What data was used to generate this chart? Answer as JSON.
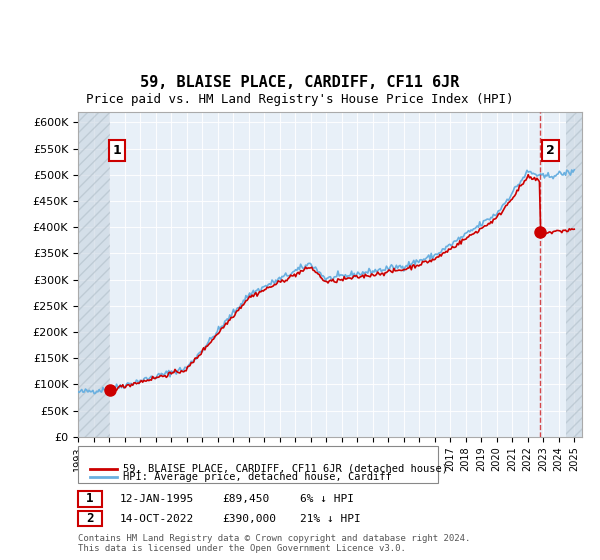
{
  "title": "59, BLAISE PLACE, CARDIFF, CF11 6JR",
  "subtitle": "Price paid vs. HM Land Registry's House Price Index (HPI)",
  "legend_line1": "59, BLAISE PLACE, CARDIFF, CF11 6JR (detached house)",
  "legend_line2": "HPI: Average price, detached house, Cardiff",
  "annotation1_label": "1",
  "annotation1_date": "12-JAN-1995",
  "annotation1_price": "£89,450",
  "annotation1_hpi": "6% ↓ HPI",
  "annotation2_label": "2",
  "annotation2_date": "14-OCT-2022",
  "annotation2_price": "£390,000",
  "annotation2_hpi": "21% ↓ HPI",
  "footer": "Contains HM Land Registry data © Crown copyright and database right 2024.\nThis data is licensed under the Open Government Licence v3.0.",
  "sale1_year": 1995.04,
  "sale1_price": 89450,
  "sale2_year": 2022.79,
  "sale2_price": 390000,
  "hpi_color": "#6ab0e0",
  "price_color": "#cc0000",
  "plot_bg": "#e8f0f8",
  "ylim_min": 0,
  "ylim_max": 620000,
  "xlim_min": 1993,
  "xlim_max": 2025.5
}
